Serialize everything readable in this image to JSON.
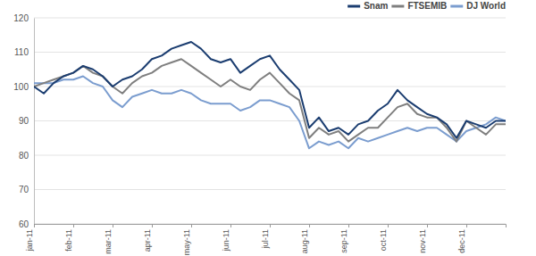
{
  "chart_data": {
    "type": "line",
    "categories": [
      "jan-11",
      null,
      null,
      null,
      "feb-11",
      null,
      null,
      null,
      "mar-11",
      null,
      null,
      null,
      "apr-11",
      null,
      null,
      null,
      "may-11",
      null,
      null,
      null,
      "jun-11",
      null,
      null,
      null,
      "jul-11",
      null,
      null,
      null,
      "aug-11",
      null,
      null,
      null,
      "sep-11",
      null,
      null,
      null,
      "oct-11",
      null,
      null,
      null,
      "nov-11",
      null,
      null,
      null,
      "dec-11",
      null,
      null,
      null,
      null
    ],
    "series": [
      {
        "name": "Snam",
        "color": "#1b3d70",
        "values": [
          100,
          98,
          101,
          103,
          104,
          106,
          105,
          103,
          100,
          102,
          103,
          105,
          108,
          109,
          111,
          112,
          113,
          111,
          108,
          107,
          108,
          104,
          106,
          108,
          109,
          105,
          102,
          99,
          88,
          91,
          87,
          88,
          86,
          89,
          90,
          93,
          95,
          99,
          96,
          94,
          92,
          91,
          89,
          85,
          90,
          89,
          88,
          90,
          90
        ]
      },
      {
        "name": "FTSEMIB",
        "color": "#7f7f7f",
        "values": [
          100,
          101,
          102,
          103,
          104,
          106,
          104,
          103,
          100,
          98,
          101,
          103,
          104,
          106,
          107,
          108,
          106,
          104,
          102,
          100,
          102,
          100,
          99,
          102,
          104,
          101,
          98,
          96,
          85,
          88,
          86,
          87,
          84,
          86,
          88,
          88,
          91,
          94,
          95,
          92,
          91,
          91,
          88,
          84,
          90,
          88,
          86,
          89,
          89
        ]
      },
      {
        "name": "DJ World",
        "color": "#7b9dcf",
        "values": [
          101,
          101,
          101,
          102,
          102,
          103,
          101,
          100,
          96,
          94,
          97,
          98,
          99,
          98,
          98,
          99,
          98,
          96,
          95,
          95,
          95,
          93,
          94,
          96,
          96,
          95,
          94,
          90,
          82,
          84,
          83,
          84,
          82,
          85,
          84,
          85,
          86,
          87,
          88,
          87,
          88,
          88,
          86,
          84,
          87,
          88,
          89,
          91,
          90
        ]
      }
    ],
    "ylim": [
      60,
      120
    ],
    "yticks": [
      60,
      70,
      80,
      90,
      100,
      110,
      120
    ],
    "grid": true,
    "legend": "top-right"
  }
}
